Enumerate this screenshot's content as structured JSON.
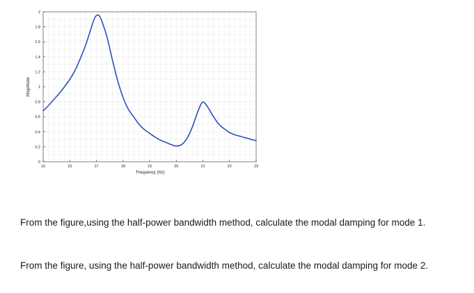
{
  "chart_data": {
    "type": "line",
    "title": "",
    "xlabel": "Frequency (Hz)",
    "ylabel": "Magnitude",
    "xlim": [
      15,
      23
    ],
    "ylim": [
      0,
      2
    ],
    "grid": true,
    "xticks": [
      "15",
      "16",
      "17",
      "18",
      "19",
      "20",
      "21",
      "22",
      "23"
    ],
    "yticks": [
      "0",
      "0.2",
      "0.4",
      "0.6",
      "0.8",
      "1",
      "1.2",
      "1.4",
      "1.6",
      "1.8",
      "2"
    ],
    "line_color": "#2a4fc0",
    "series": [
      {
        "x": [
          15.0,
          15.2,
          15.4,
          15.6,
          15.8,
          16.0,
          16.2,
          16.4,
          16.6,
          16.8,
          16.9,
          17.0,
          17.1,
          17.2,
          17.4,
          17.6,
          17.8,
          18.0,
          18.2,
          18.4,
          18.6,
          18.8,
          19.0,
          19.2,
          19.4,
          19.6,
          19.8,
          20.0,
          20.2,
          20.4,
          20.6,
          20.8,
          20.95,
          21.05,
          21.2,
          21.4,
          21.6,
          21.8,
          22.0,
          22.2,
          22.4,
          22.6,
          22.8,
          23.0
        ],
        "y": [
          0.68,
          0.75,
          0.83,
          0.91,
          1.0,
          1.1,
          1.22,
          1.38,
          1.56,
          1.78,
          1.89,
          1.95,
          1.95,
          1.88,
          1.66,
          1.36,
          1.08,
          0.86,
          0.7,
          0.6,
          0.5,
          0.43,
          0.38,
          0.33,
          0.29,
          0.26,
          0.23,
          0.21,
          0.23,
          0.31,
          0.46,
          0.66,
          0.78,
          0.79,
          0.72,
          0.6,
          0.5,
          0.44,
          0.39,
          0.36,
          0.34,
          0.32,
          0.3,
          0.28
        ]
      }
    ]
  },
  "questions": {
    "q1": "From the figure,using the half-power bandwidth method, calculate the modal damping for mode 1.",
    "q2": "From the figure, using the half-power bandwidth method, calculate the modal damping for mode 2."
  }
}
